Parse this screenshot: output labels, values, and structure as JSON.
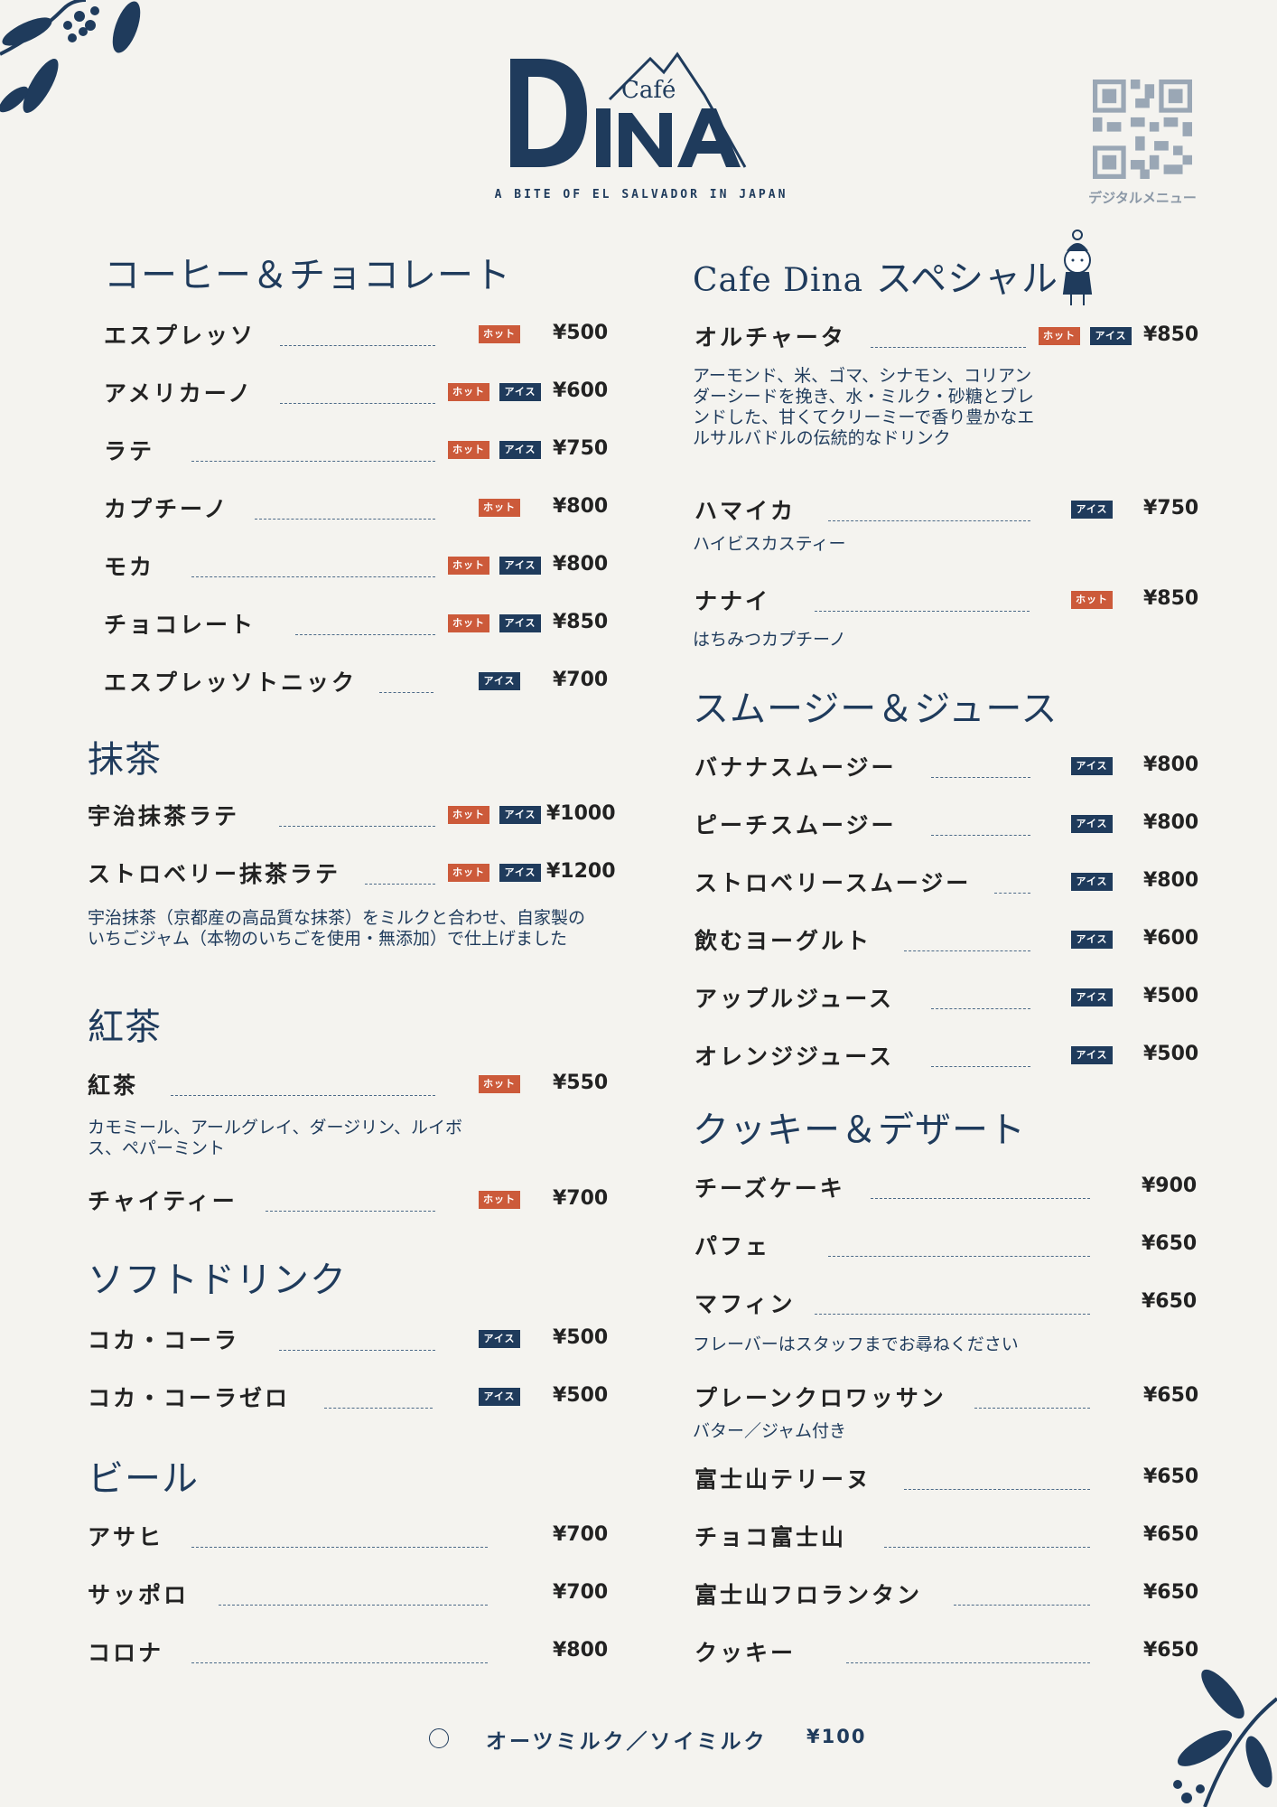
{
  "brand": {
    "logo_small": "Café",
    "logo_main": "DINA",
    "tagline": "A BITE OF EL SALVADOR IN JAPAN",
    "qr_label": "デジタルメニュー",
    "colors": {
      "navy": "#1f3b5c",
      "hot": "#cc5a3a",
      "ice": "#1f3b5c",
      "background": "#f4f3ef"
    }
  },
  "badges": {
    "hot": "ホット",
    "ice": "アイス"
  },
  "sections": {
    "coffee": {
      "title": "コーヒー＆チョコレート",
      "items": [
        {
          "name": "エスプレッソ",
          "price": "¥500",
          "hot": true,
          "ice": false
        },
        {
          "name": "アメリカーノ",
          "price": "¥600",
          "hot": true,
          "ice": true
        },
        {
          "name": "ラテ",
          "price": "¥750",
          "hot": true,
          "ice": true
        },
        {
          "name": "カプチーノ",
          "price": "¥800",
          "hot": true,
          "ice": false
        },
        {
          "name": "モカ",
          "price": "¥800",
          "hot": true,
          "ice": true
        },
        {
          "name": "チョコレート",
          "price": "¥850",
          "hot": true,
          "ice": true
        },
        {
          "name": "エスプレッソトニック",
          "price": "¥700",
          "hot": false,
          "ice": true
        }
      ]
    },
    "matcha": {
      "title": "抹茶",
      "items": [
        {
          "name": "宇治抹茶ラテ",
          "price": "¥1000",
          "hot": true,
          "ice": true
        },
        {
          "name": "ストロベリー抹茶ラテ",
          "price": "¥1200",
          "hot": true,
          "ice": true
        }
      ],
      "desc": "宇治抹茶（京都産の高品質な抹茶）をミルクと合わせ、自家製のいちごジャム（本物のいちごを使用・無添加）で仕上げました"
    },
    "tea": {
      "title": "紅茶",
      "items": [
        {
          "name": "紅茶",
          "price": "¥550",
          "hot": true,
          "ice": false
        },
        {
          "name": "チャイティー",
          "price": "¥700",
          "hot": true,
          "ice": false
        }
      ],
      "desc": "カモミール、アールグレイ、ダージリン、ルイボス、ペパーミント"
    },
    "soft": {
      "title": "ソフトドリンク",
      "items": [
        {
          "name": "コカ・コーラ",
          "price": "¥500",
          "hot": false,
          "ice": true
        },
        {
          "name": "コカ・コーラゼロ",
          "price": "¥500",
          "hot": false,
          "ice": true
        }
      ]
    },
    "beer": {
      "title": "ビール",
      "items": [
        {
          "name": "アサヒ",
          "price": "¥700"
        },
        {
          "name": "サッポロ",
          "price": "¥700"
        },
        {
          "name": "コロナ",
          "price": "¥800"
        }
      ]
    },
    "special": {
      "title_latin": "Cafe Dina",
      "title_jp": "スペシャル",
      "items": [
        {
          "name": "オルチャータ",
          "price": "¥850",
          "hot": true,
          "ice": true,
          "desc": "アーモンド、米、ゴマ、シナモン、コリアンダーシードを挽き、水・ミルク・砂糖とブレンドした、甘くてクリーミーで香り豊かなエルサルバドルの伝統的なドリンク"
        },
        {
          "name": "ハマイカ",
          "price": "¥750",
          "hot": false,
          "ice": true,
          "desc": "ハイビスカスティー"
        },
        {
          "name": "ナナイ",
          "price": "¥850",
          "hot": true,
          "ice": false,
          "desc": "はちみつカプチーノ"
        }
      ]
    },
    "smoothie": {
      "title": "スムージー＆ジュース",
      "items": [
        {
          "name": "バナナスムージー",
          "price": "¥800"
        },
        {
          "name": "ピーチスムージー",
          "price": "¥800"
        },
        {
          "name": "ストロベリースムージー",
          "price": "¥800"
        },
        {
          "name": "飲むヨーグルト",
          "price": "¥600"
        },
        {
          "name": "アップルジュース",
          "price": "¥500"
        },
        {
          "name": "オレンジジュース",
          "price": "¥500"
        }
      ]
    },
    "dessert": {
      "title": "クッキー＆デザート",
      "items": [
        {
          "name": "チーズケーキ",
          "price": "¥900"
        },
        {
          "name": "パフェ",
          "price": "¥650"
        },
        {
          "name": "マフィン",
          "price": "¥650",
          "desc": "フレーバーはスタッフまでお尋ねください"
        },
        {
          "name": "プレーンクロワッサン",
          "price": "¥650",
          "desc": "バター／ジャム付き"
        },
        {
          "name": "富士山テリーヌ",
          "price": "¥650"
        },
        {
          "name": "チョコ富士山",
          "price": "¥650"
        },
        {
          "name": "富士山フロランタン",
          "price": "¥650"
        },
        {
          "name": "クッキー",
          "price": "¥650"
        }
      ]
    }
  },
  "footer": {
    "name": "オーツミルク／ソイミルク",
    "price": "¥100"
  }
}
